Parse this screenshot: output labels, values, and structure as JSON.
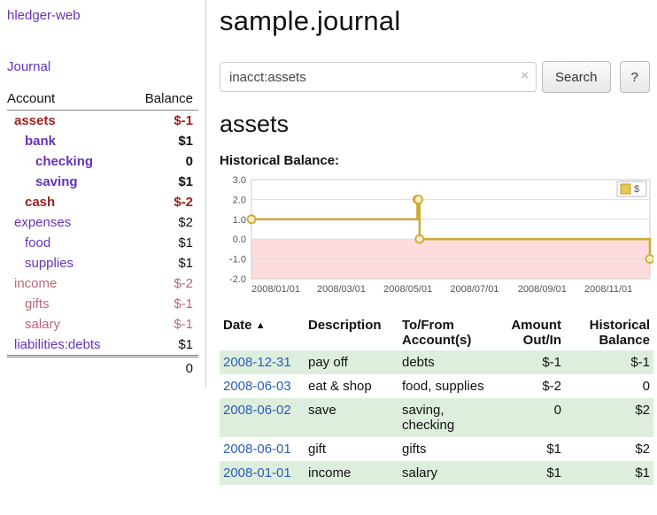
{
  "colors": {
    "link-purple": "#6633bb",
    "link-blue": "#2a5db5",
    "negative-strong": "#9c1f1f",
    "negative-muted": "#bb6677",
    "row-green": "#ddeedd"
  },
  "sidebar": {
    "app_title": "hledger-web",
    "journal_link": "Journal",
    "table": {
      "account_header": "Account",
      "balance_header": "Balance",
      "accounts": [
        {
          "name": "assets",
          "balance": "$-1",
          "indent": 0,
          "emph": true,
          "negative": true,
          "balance_negative": true
        },
        {
          "name": "bank",
          "balance": "$1",
          "indent": 1,
          "emph": true,
          "negative": false,
          "balance_negative": false
        },
        {
          "name": "checking",
          "balance": "0",
          "indent": 2,
          "emph": true,
          "negative": false,
          "balance_negative": false
        },
        {
          "name": "saving",
          "balance": "$1",
          "indent": 2,
          "emph": true,
          "negative": false,
          "balance_negative": false
        },
        {
          "name": "cash",
          "balance": "$-2",
          "indent": 1,
          "emph": true,
          "negative": true,
          "balance_negative": true
        },
        {
          "name": "expenses",
          "balance": "$2",
          "indent": 0,
          "emph": false,
          "negative": false,
          "balance_negative": false
        },
        {
          "name": "food",
          "balance": "$1",
          "indent": 1,
          "emph": false,
          "negative": false,
          "balance_negative": false
        },
        {
          "name": "supplies",
          "balance": "$1",
          "indent": 1,
          "emph": false,
          "negative": false,
          "balance_negative": false
        },
        {
          "name": "income",
          "balance": "$-2",
          "indent": 0,
          "emph": false,
          "negative": true,
          "balance_negative": true
        },
        {
          "name": "gifts",
          "balance": "$-1",
          "indent": 1,
          "emph": false,
          "negative": true,
          "balance_negative": true
        },
        {
          "name": "salary",
          "balance": "$-1",
          "indent": 1,
          "emph": false,
          "negative": true,
          "balance_negative": true
        },
        {
          "name": "liabilities:debts",
          "balance": "$1",
          "indent": 0,
          "emph": false,
          "negative": false,
          "balance_negative": false
        }
      ],
      "total": "0"
    }
  },
  "main": {
    "title": "sample.journal",
    "search": {
      "value": "inacct:assets",
      "clear_icon": "×",
      "button_label": "Search",
      "help_label": "?"
    },
    "account_heading": "assets",
    "chart_label": "Historical Balance:",
    "register": {
      "headers": {
        "date": "Date",
        "sort_icon": "▲",
        "description": "Description",
        "accounts": "To/From Account(s)",
        "amount": "Amount Out/In",
        "balance": "Historical Balance"
      },
      "rows": [
        {
          "date": "2008-12-31",
          "description": "pay off",
          "accounts": "debts",
          "amount": "$-1",
          "balance": "$-1",
          "amount_negative": true,
          "balance_negative": true,
          "shaded": true
        },
        {
          "date": "2008-06-03",
          "description": "eat & shop",
          "accounts": "food, supplies",
          "amount": "$-2",
          "balance": "0",
          "amount_negative": true,
          "balance_negative": false,
          "shaded": false
        },
        {
          "date": "2008-06-02",
          "description": "save",
          "accounts": "saving, checking",
          "amount": "0",
          "balance": "$2",
          "amount_negative": false,
          "balance_negative": false,
          "shaded": true
        },
        {
          "date": "2008-06-01",
          "description": "gift",
          "accounts": "gifts",
          "amount": "$1",
          "balance": "$2",
          "amount_negative": false,
          "balance_negative": false,
          "shaded": false
        },
        {
          "date": "2008-01-01",
          "description": "income",
          "accounts": "salary",
          "amount": "$1",
          "balance": "$1",
          "amount_negative": false,
          "balance_negative": false,
          "shaded": true
        }
      ]
    }
  },
  "chart_data": {
    "type": "line",
    "title": "Historical Balance",
    "step": true,
    "legend_label": "$",
    "ylim": [
      -2.0,
      3.0
    ],
    "yticks": [
      3.0,
      2.0,
      1.0,
      0.0,
      -1.0,
      -2.0
    ],
    "xticks": [
      "2008/01/01",
      "2008/03/01",
      "2008/05/01",
      "2008/07/01",
      "2008/09/01",
      "2008/11/01"
    ],
    "xtick_days": [
      1,
      61,
      122,
      183,
      245,
      306
    ],
    "x_domain_days": 366,
    "points": [
      {
        "date": "2008-01-01",
        "day": 1,
        "value": 1
      },
      {
        "date": "2008-06-01",
        "day": 153,
        "value": 2
      },
      {
        "date": "2008-06-02",
        "day": 154,
        "value": 2
      },
      {
        "date": "2008-06-03",
        "day": 155,
        "value": 0
      },
      {
        "date": "2008-12-31",
        "day": 366,
        "value": -1
      }
    ],
    "line_color": "#ccaa33",
    "marker_fill": "#f5ecc8",
    "negative_fill": "#fcdcdc",
    "legend_fill": "#e8c84a",
    "legend_border": "#b89b2e",
    "grid": true,
    "legend_position": "top-right"
  }
}
